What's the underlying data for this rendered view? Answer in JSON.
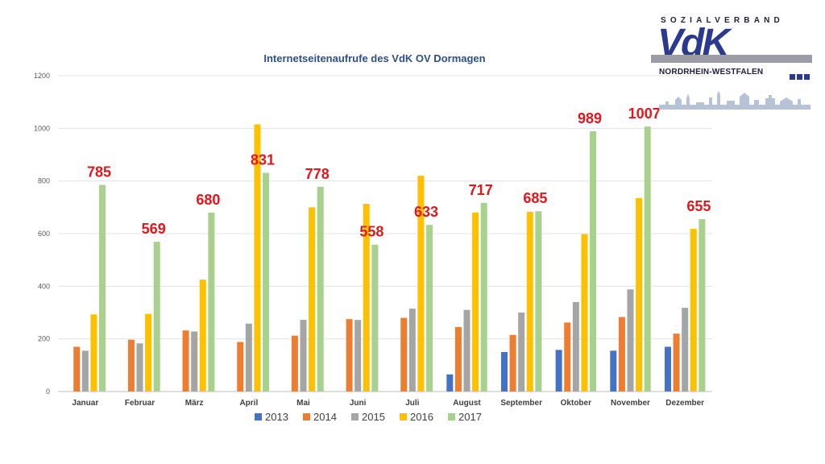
{
  "logo": {
    "top_text": "SOZIALVERBAND",
    "main_text": "VdK",
    "sub_text": "NORDRHEIN-WESTFALEN",
    "colors": {
      "primary": "#2b3a8f",
      "bar": "#9c9ca6",
      "skyline": "#b4c4d6"
    }
  },
  "chart_data": {
    "type": "bar",
    "title": "Internetseitenaufrufe des VdK OV Dormagen",
    "xlabel": "",
    "ylabel": "",
    "ylim": [
      0,
      1200
    ],
    "yticks": [
      0,
      200,
      400,
      600,
      800,
      1000,
      1200
    ],
    "grid": true,
    "legend": "bottom",
    "categories": [
      "Januar",
      "Februar",
      "März",
      "April",
      "Mai",
      "Juni",
      "Juli",
      "August",
      "September",
      "Oktober",
      "November",
      "Dezember"
    ],
    "series": [
      {
        "name": "2013",
        "color": "#4472c4",
        "values": [
          null,
          null,
          null,
          null,
          null,
          null,
          null,
          65,
          150,
          158,
          155,
          170
        ]
      },
      {
        "name": "2014",
        "color": "#ed7d31",
        "values": [
          170,
          197,
          232,
          188,
          212,
          275,
          280,
          245,
          215,
          262,
          283,
          220
        ]
      },
      {
        "name": "2015",
        "color": "#a5a5a5",
        "values": [
          155,
          183,
          228,
          258,
          272,
          272,
          315,
          310,
          300,
          340,
          388,
          318
        ]
      },
      {
        "name": "2016",
        "color": "#ffc000",
        "values": [
          293,
          295,
          425,
          1015,
          700,
          713,
          820,
          680,
          683,
          598,
          735,
          618
        ]
      },
      {
        "name": "2017",
        "color": "#a9d18e",
        "values": [
          785,
          569,
          680,
          831,
          778,
          558,
          633,
          717,
          685,
          989,
          1007,
          655
        ]
      }
    ],
    "data_labels": {
      "series": "2017",
      "color": "#e3161b",
      "values": [
        "785",
        "569",
        "680",
        "831",
        "778",
        "558",
        "633",
        "717",
        "685",
        "989",
        "1007",
        "655"
      ]
    }
  }
}
